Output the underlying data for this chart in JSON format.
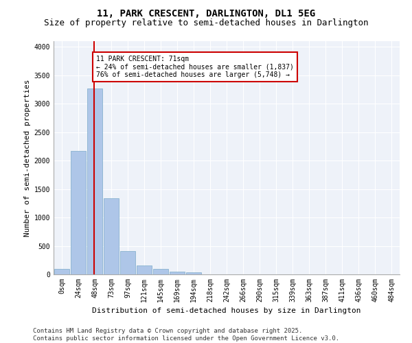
{
  "title_line1": "11, PARK CRESCENT, DARLINGTON, DL1 5EG",
  "title_line2": "Size of property relative to semi-detached houses in Darlington",
  "xlabel": "Distribution of semi-detached houses by size in Darlington",
  "ylabel": "Number of semi-detached properties",
  "bar_labels": [
    "0sqm",
    "24sqm",
    "48sqm",
    "73sqm",
    "97sqm",
    "121sqm",
    "145sqm",
    "169sqm",
    "194sqm",
    "218sqm",
    "242sqm",
    "266sqm",
    "290sqm",
    "315sqm",
    "339sqm",
    "363sqm",
    "387sqm",
    "411sqm",
    "436sqm",
    "460sqm",
    "484sqm"
  ],
  "bar_values": [
    100,
    2170,
    3270,
    1340,
    405,
    160,
    95,
    50,
    40,
    0,
    0,
    0,
    0,
    0,
    0,
    0,
    0,
    0,
    0,
    0,
    0
  ],
  "bar_color": "#aec6e8",
  "bar_edge_color": "#7aaac8",
  "annotation_title": "11 PARK CRESCENT: 71sqm",
  "annotation_line2": "← 24% of semi-detached houses are smaller (1,837)",
  "annotation_line3": "76% of semi-detached houses are larger (5,748) →",
  "annotation_box_color": "#ffffff",
  "annotation_box_edge_color": "#cc0000",
  "vline_color": "#cc0000",
  "vline_pos": 1.97,
  "ylim": [
    0,
    4100
  ],
  "yticks": [
    0,
    500,
    1000,
    1500,
    2000,
    2500,
    3000,
    3500,
    4000
  ],
  "background_color": "#eef2f9",
  "grid_color": "#ffffff",
  "title_fontsize": 10,
  "subtitle_fontsize": 9,
  "axis_label_fontsize": 8,
  "tick_fontsize": 7,
  "annotation_fontsize": 7,
  "footer_fontsize": 6.5
}
